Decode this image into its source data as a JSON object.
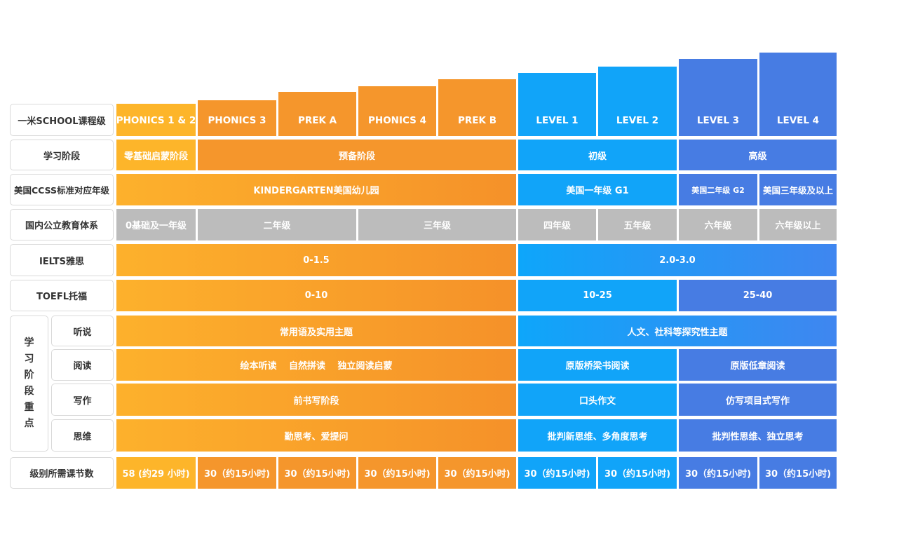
{
  "row_labels": {
    "course": "一米SCHOOL课程级",
    "stage": "学习阶段",
    "ccss": "美国CCSS标准对应年级",
    "domestic": "国内公立教育体系",
    "ielts": "IELTS雅思",
    "toefl": "TOEFL托福",
    "focus_group": "学习阶段重点",
    "listening": "听说",
    "reading": "阅读",
    "writing": "写作",
    "thinking": "思维",
    "lessons": "级别所需课节数"
  },
  "levels": [
    "PHONICS 1 & 2",
    "PHONICS 3",
    "PREK A",
    "PHONICS 4",
    "PREK B",
    "LEVEL 1",
    "LEVEL 2",
    "LEVEL 3",
    "LEVEL 4"
  ],
  "stage": [
    "零基础启蒙阶段",
    "预备阶段",
    "初级",
    "高级"
  ],
  "ccss": [
    "KINDERGARTEN美国幼儿园",
    "美国一年级 G1",
    "美国二年级 G2",
    "美国三年级及以上"
  ],
  "domestic": [
    "0基础及一年级",
    "二年级",
    "三年级",
    "四年级",
    "五年级",
    "六年级",
    "六年级以上"
  ],
  "ielts": [
    "0-1.5",
    "2.0-3.0"
  ],
  "toefl": [
    "0-10",
    "10-25",
    "25-40"
  ],
  "listening": [
    "常用语及实用主题",
    "人文、社科等探究性主题"
  ],
  "reading": [
    "绘本听读　 自然拼读 　独立阅读启蒙",
    "原版桥梁书阅读",
    "原版低章阅读"
  ],
  "writing": [
    "前书写阶段",
    "口头作文",
    "仿写项目式写作"
  ],
  "thinking": [
    "勤思考、爱提问",
    "批判新思维、多角度思考",
    "批判性思维、独立思考"
  ],
  "lessons": [
    "58 (约29 小时)",
    "30（约15小时)",
    "30（约15小时)",
    "30（约15小时)",
    "30（约15小时)",
    "30（约15小时)",
    "30（约15小时)",
    "30（约15小时)",
    "30（约15小时)"
  ],
  "colors": {
    "yellow": "#fdb52a",
    "orange": "#f5962c",
    "blue": "#11a4f9",
    "navy": "#477ce3",
    "gray": "#bcbcbc"
  }
}
